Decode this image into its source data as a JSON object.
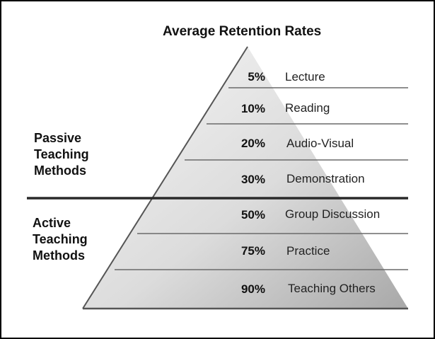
{
  "title": "Average Retention Rates",
  "groups": {
    "passive": [
      "Passive",
      "Teaching",
      "Methods"
    ],
    "active": [
      "Active",
      "Teaching",
      "Methods"
    ]
  },
  "levels": [
    {
      "percent": "5%",
      "method": "Lecture"
    },
    {
      "percent": "10%",
      "method": "Reading"
    },
    {
      "percent": "20%",
      "method": "Audio-Visual"
    },
    {
      "percent": "30%",
      "method": "Demonstration"
    },
    {
      "percent": "50%",
      "method": "Group Discussion"
    },
    {
      "percent": "75%",
      "method": "Practice"
    },
    {
      "percent": "90%",
      "method": "Teaching Others"
    }
  ],
  "colors": {
    "pyramid_light": "#f4f4f4",
    "pyramid_dark": "#b4b4b4",
    "line": "#555555",
    "divider": "#2a2a2a"
  }
}
